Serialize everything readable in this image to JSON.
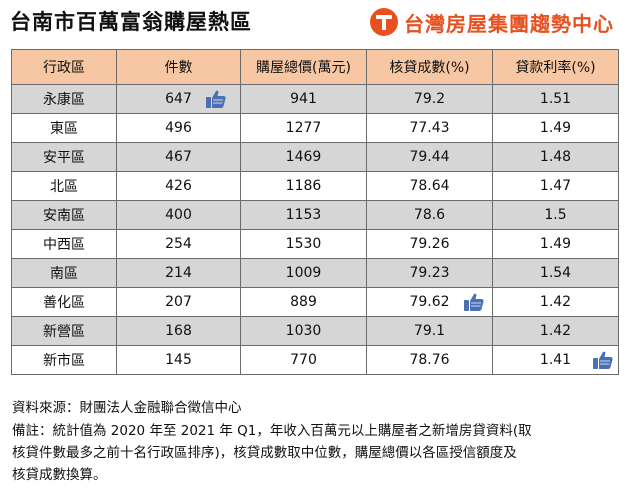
{
  "header": {
    "title": "台南市百萬富翁購屋熱區",
    "brand": "台灣房屋集團趨勢中心"
  },
  "table": {
    "columns": [
      "行政區",
      "件數",
      "購屋總價(萬元)",
      "核貸成數(%)",
      "貸款利率(%)"
    ],
    "rows": [
      {
        "district": "永康區",
        "count": "647",
        "price": "941",
        "ltv": "79.2",
        "rate": "1.51"
      },
      {
        "district": "東區",
        "count": "496",
        "price": "1277",
        "ltv": "77.43",
        "rate": "1.49"
      },
      {
        "district": "安平區",
        "count": "467",
        "price": "1469",
        "ltv": "79.44",
        "rate": "1.48"
      },
      {
        "district": "北區",
        "count": "426",
        "price": "1186",
        "ltv": "78.64",
        "rate": "1.47"
      },
      {
        "district": "安南區",
        "count": "400",
        "price": "1153",
        "ltv": "78.6",
        "rate": "1.5"
      },
      {
        "district": "中西區",
        "count": "254",
        "price": "1530",
        "ltv": "79.26",
        "rate": "1.49"
      },
      {
        "district": "南區",
        "count": "214",
        "price": "1009",
        "ltv": "79.23",
        "rate": "1.54"
      },
      {
        "district": "善化區",
        "count": "207",
        "price": "889",
        "ltv": "79.62",
        "rate": "1.42"
      },
      {
        "district": "新營區",
        "count": "168",
        "price": "1030",
        "ltv": "79.1",
        "rate": "1.42"
      },
      {
        "district": "新市區",
        "count": "145",
        "price": "770",
        "ltv": "78.76",
        "rate": "1.41"
      }
    ],
    "highlights": {
      "count_top_row": 0,
      "ltv_top_row": 7,
      "rate_low_row": 9
    },
    "icon": "thumbs-up-icon",
    "colors": {
      "header_bg": "#f7c7a4",
      "stripe_bg": "#d6d6d6",
      "thumb": "#4a6fb3",
      "brand": "#e8511f"
    }
  },
  "notes": {
    "source": "資料來源：財團法人金融聯合徵信中心",
    "remark_line1": "備註：統計值為 2020 年至 2021 年 Q1，年收入百萬元以上購屋者之新增房貸資料(取",
    "remark_line2": "核貸件數最多之前十名行政區排序)，核貸成數取中位數，購屋總價以各區授信額度及",
    "remark_line3": "核貸成數換算。"
  }
}
